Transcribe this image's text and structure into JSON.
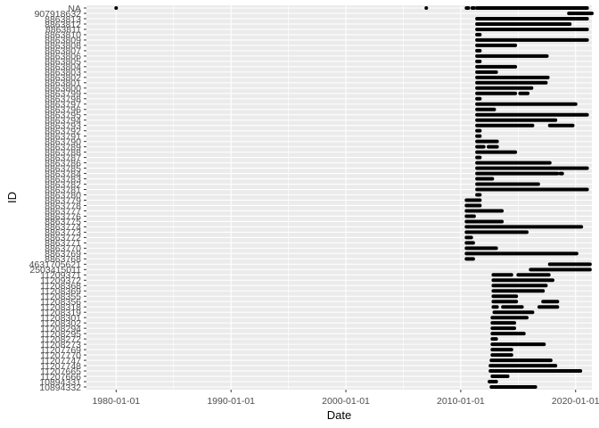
{
  "chart_data": {
    "type": "scatter",
    "title": "",
    "xlabel": "Date",
    "ylabel": "ID",
    "x_axis_type": "date",
    "xlim": [
      "1977-06-01",
      "2021-06-01"
    ],
    "x_ticks": [
      "1980-01-01",
      "1990-01-01",
      "2000-01-01",
      "2010-01-01",
      "2020-01-01"
    ],
    "y_categories": [
      "10894332",
      "10894331",
      "11207666",
      "11207665",
      "11207748",
      "11207747",
      "11207770",
      "11207769",
      "11208273",
      "11208272",
      "11208295",
      "11208294",
      "11208302",
      "11208301",
      "11208319",
      "11208318",
      "11208356",
      "11208355",
      "11208369",
      "11208368",
      "11209372",
      "11209371",
      "2503415011",
      "4631705621",
      "8863768",
      "8863769",
      "8863770",
      "8863771",
      "8863772",
      "8863773",
      "8863774",
      "8863775",
      "8863776",
      "8863777",
      "8863778",
      "8863779",
      "8863780",
      "8863781",
      "8863782",
      "8863783",
      "8863784",
      "8863785",
      "8863786",
      "8863787",
      "8863788",
      "8863789",
      "8863790",
      "8863791",
      "8863792",
      "8863793",
      "8863794",
      "8863795",
      "8863796",
      "8863797",
      "8863798",
      "8863799",
      "8863800",
      "8863801",
      "8863802",
      "8863803",
      "8863804",
      "8863805",
      "8863806",
      "8863807",
      "8863808",
      "8863809",
      "8863810",
      "8863811",
      "8863812",
      "8863813",
      "907918632",
      "NA"
    ],
    "y_tick_labels": [
      "10894332",
      "10894331",
      "11207666",
      "11207665",
      "11207748",
      "11207747",
      "11207770",
      "11207769",
      "11208273",
      "11208272",
      "11208295",
      "11208294",
      "11208302",
      "11208301",
      "11208319",
      "11208318",
      "11208356",
      "11208355",
      "11208369",
      "11208368",
      "11209372",
      "11209371",
      "2503415011",
      "4631705621",
      "8863768",
      "8863769",
      "8863770",
      "8863771",
      "8863772",
      "8863773",
      "8863774",
      "8863775",
      "8863776",
      "8863777",
      "8863778",
      "8863779",
      "8863780",
      "8863781",
      "8863782",
      "8863783",
      "8863784",
      "8863785",
      "8863786",
      "8863787",
      "8863788",
      "8863789",
      "8863790",
      "8863791",
      "8863792",
      "8863793",
      "8863794",
      "8863795",
      "8863796",
      "8863797",
      "8863798",
      "8863799",
      "8863800",
      "8863801",
      "8863802",
      "8863803",
      "8863804",
      "8863805",
      "8863806",
      "8863807",
      "8863808",
      "8863809",
      "8863810",
      "8863811",
      "8863812",
      "8863813",
      "907918632",
      "NA"
    ],
    "grid": true,
    "legend": "none",
    "point_color": "#000000",
    "panel_background": "#ebebeb",
    "grid_color": "#ffffff",
    "segments": [
      {
        "id": "10894332",
        "ranges": [
          [
            "2012-09-01",
            "2016-07-01"
          ]
        ]
      },
      {
        "id": "10894331",
        "ranges": [
          [
            "2012-07-01",
            "2013-02-01"
          ]
        ]
      },
      {
        "id": "11207666",
        "ranges": [
          [
            "2012-10-01",
            "2014-02-01"
          ]
        ]
      },
      {
        "id": "11207665",
        "ranges": [
          [
            "2012-08-01",
            "2020-06-01"
          ]
        ]
      },
      {
        "id": "11207748",
        "ranges": [
          [
            "2012-08-01",
            "2018-04-01"
          ]
        ]
      },
      {
        "id": "11207747",
        "ranges": [
          [
            "2012-09-01",
            "2017-11-01"
          ]
        ]
      },
      {
        "id": "11207770",
        "ranges": [
          [
            "2012-10-01",
            "2014-06-01"
          ]
        ]
      },
      {
        "id": "11207769",
        "ranges": [
          [
            "2012-10-01",
            "2014-06-01"
          ]
        ]
      },
      {
        "id": "11208273",
        "ranges": [
          [
            "2012-10-01",
            "2017-04-01"
          ]
        ]
      },
      {
        "id": "11208272",
        "ranges": [
          [
            "2012-10-01",
            "2013-02-01"
          ]
        ]
      },
      {
        "id": "11208295",
        "ranges": [
          [
            "2012-10-01",
            "2015-07-01"
          ]
        ]
      },
      {
        "id": "11208294",
        "ranges": [
          [
            "2012-10-01",
            "2014-09-01"
          ]
        ]
      },
      {
        "id": "11208302",
        "ranges": [
          [
            "2012-10-01",
            "2014-09-01"
          ]
        ]
      },
      {
        "id": "11208301",
        "ranges": [
          [
            "2012-10-01",
            "2015-10-01"
          ]
        ]
      },
      {
        "id": "11208319",
        "ranges": [
          [
            "2012-12-01",
            "2016-04-01"
          ]
        ]
      },
      {
        "id": "11208318",
        "ranges": [
          [
            "2012-11-01",
            "2013-03-01"
          ],
          [
            "2013-09-01",
            "2015-05-01"
          ],
          [
            "2016-11-01",
            "2018-06-01"
          ]
        ]
      },
      {
        "id": "11208356",
        "ranges": [
          [
            "2012-11-01",
            "2014-11-01"
          ],
          [
            "2017-03-01",
            "2018-06-01"
          ]
        ]
      },
      {
        "id": "11208355",
        "ranges": [
          [
            "2012-11-01",
            "2014-11-01"
          ]
        ]
      },
      {
        "id": "11208369",
        "ranges": [
          [
            "2012-11-01",
            "2017-03-01"
          ]
        ]
      },
      {
        "id": "11208368",
        "ranges": [
          [
            "2012-11-01",
            "2017-06-01"
          ]
        ]
      },
      {
        "id": "11209372",
        "ranges": [
          [
            "2012-11-01",
            "2018-01-01"
          ]
        ]
      },
      {
        "id": "11209371",
        "ranges": [
          [
            "2012-11-01",
            "2014-06-01"
          ],
          [
            "2015-01-01",
            "2017-09-01"
          ]
        ]
      },
      {
        "id": "2503415011",
        "ranges": [
          [
            "2016-02-01",
            "2021-04-01"
          ]
        ]
      },
      {
        "id": "4631705621",
        "ranges": [
          [
            "2017-10-01",
            "2021-04-01"
          ]
        ]
      },
      {
        "id": "8863768",
        "ranges": [
          [
            "2010-07-01",
            "2011-02-01"
          ]
        ]
      },
      {
        "id": "8863769",
        "ranges": [
          [
            "2010-07-01",
            "2020-02-01"
          ]
        ]
      },
      {
        "id": "8863770",
        "ranges": [
          [
            "2010-07-01",
            "2013-02-01"
          ]
        ]
      },
      {
        "id": "8863771",
        "ranges": [
          [
            "2010-07-01",
            "2011-02-01"
          ]
        ]
      },
      {
        "id": "8863772",
        "ranges": [
          [
            "2010-07-01",
            "2010-12-01"
          ]
        ]
      },
      {
        "id": "8863773",
        "ranges": [
          [
            "2010-07-01",
            "2015-10-01"
          ]
        ]
      },
      {
        "id": "8863774",
        "ranges": [
          [
            "2010-07-01",
            "2020-07-01"
          ]
        ]
      },
      {
        "id": "8863775",
        "ranges": [
          [
            "2010-07-01",
            "2013-08-01"
          ]
        ]
      },
      {
        "id": "8863776",
        "ranges": [
          [
            "2010-07-01",
            "2011-03-01"
          ]
        ]
      },
      {
        "id": "8863777",
        "ranges": [
          [
            "2010-07-01",
            "2013-08-01"
          ]
        ]
      },
      {
        "id": "8863778",
        "ranges": [
          [
            "2010-07-01",
            "2011-09-01"
          ]
        ]
      },
      {
        "id": "8863779",
        "ranges": [
          [
            "2010-07-01",
            "2011-09-01"
          ]
        ]
      },
      {
        "id": "8863780",
        "ranges": [
          [
            "2011-06-01",
            "2011-09-01"
          ]
        ]
      },
      {
        "id": "8863781",
        "ranges": [
          [
            "2011-06-01",
            "2021-01-01"
          ]
        ]
      },
      {
        "id": "8863782",
        "ranges": [
          [
            "2011-06-01",
            "2016-10-01"
          ]
        ]
      },
      {
        "id": "8863783",
        "ranges": [
          [
            "2011-06-01",
            "2012-10-01"
          ]
        ]
      },
      {
        "id": "8863784",
        "ranges": [
          [
            "2011-06-01",
            "2018-06-01"
          ],
          [
            "2018-09-01",
            "2018-11-01"
          ]
        ]
      },
      {
        "id": "8863785",
        "ranges": [
          [
            "2011-06-01",
            "2021-01-01"
          ]
        ]
      },
      {
        "id": "8863786",
        "ranges": [
          [
            "2011-06-01",
            "2017-10-01"
          ]
        ]
      },
      {
        "id": "8863787",
        "ranges": [
          [
            "2011-06-01",
            "2011-09-01"
          ]
        ]
      },
      {
        "id": "8863788",
        "ranges": [
          [
            "2011-06-01",
            "2014-10-01"
          ]
        ]
      },
      {
        "id": "8863789",
        "ranges": [
          [
            "2011-06-01",
            "2012-01-01"
          ],
          [
            "2012-06-01",
            "2013-03-01"
          ]
        ]
      },
      {
        "id": "8863790",
        "ranges": [
          [
            "2011-06-01",
            "2013-03-01"
          ]
        ]
      },
      {
        "id": "8863791",
        "ranges": [
          [
            "2011-06-01",
            "2011-09-01"
          ]
        ]
      },
      {
        "id": "8863792",
        "ranges": [
          [
            "2011-06-01",
            "2011-09-01"
          ]
        ]
      },
      {
        "id": "8863793",
        "ranges": [
          [
            "2011-06-01",
            "2016-04-01"
          ],
          [
            "2017-10-01",
            "2019-10-01"
          ]
        ]
      },
      {
        "id": "8863794",
        "ranges": [
          [
            "2011-06-01",
            "2018-04-01"
          ]
        ]
      },
      {
        "id": "8863795",
        "ranges": [
          [
            "2011-06-01",
            "2021-01-01"
          ]
        ]
      },
      {
        "id": "8863796",
        "ranges": [
          [
            "2011-06-01",
            "2012-12-01"
          ]
        ]
      },
      {
        "id": "8863797",
        "ranges": [
          [
            "2011-06-01",
            "2020-01-01"
          ]
        ]
      },
      {
        "id": "8863798",
        "ranges": [
          [
            "2011-06-01",
            "2011-09-01"
          ]
        ]
      },
      {
        "id": "8863799",
        "ranges": [
          [
            "2011-06-01",
            "2014-10-01"
          ],
          [
            "2015-03-01",
            "2015-11-01"
          ]
        ]
      },
      {
        "id": "8863800",
        "ranges": [
          [
            "2011-06-01",
            "2016-03-01"
          ]
        ]
      },
      {
        "id": "8863801",
        "ranges": [
          [
            "2011-06-01",
            "2017-06-01"
          ]
        ]
      },
      {
        "id": "8863802",
        "ranges": [
          [
            "2011-06-01",
            "2017-08-01"
          ]
        ]
      },
      {
        "id": "8863803",
        "ranges": [
          [
            "2011-06-01",
            "2013-02-01"
          ]
        ]
      },
      {
        "id": "8863804",
        "ranges": [
          [
            "2011-06-01",
            "2014-10-01"
          ]
        ]
      },
      {
        "id": "8863805",
        "ranges": [
          [
            "2011-06-01",
            "2011-09-01"
          ]
        ]
      },
      {
        "id": "8863806",
        "ranges": [
          [
            "2011-06-01",
            "2017-07-01"
          ]
        ]
      },
      {
        "id": "8863807",
        "ranges": [
          [
            "2011-06-01",
            "2011-09-01"
          ]
        ]
      },
      {
        "id": "8863808",
        "ranges": [
          [
            "2011-06-01",
            "2014-10-01"
          ]
        ]
      },
      {
        "id": "8863809",
        "ranges": [
          [
            "2011-06-01",
            "2021-01-01"
          ]
        ]
      },
      {
        "id": "8863810",
        "ranges": [
          [
            "2011-06-01",
            "2011-09-01"
          ]
        ]
      },
      {
        "id": "8863811",
        "ranges": [
          [
            "2011-06-01",
            "2021-01-01"
          ]
        ]
      },
      {
        "id": "8863812",
        "ranges": [
          [
            "2011-06-01",
            "2019-07-01"
          ]
        ]
      },
      {
        "id": "8863813",
        "ranges": [
          [
            "2011-06-01",
            "2021-01-01"
          ]
        ]
      },
      {
        "id": "907918632",
        "ranges": [
          [
            "2019-06-01",
            "2021-06-01"
          ]
        ]
      },
      {
        "id": "NA",
        "ranges": [
          [
            "1980-01-01",
            "1980-01-01"
          ],
          [
            "2007-01-01",
            "2007-01-01"
          ],
          [
            "2010-07-01",
            "2010-09-01"
          ],
          [
            "2011-01-01",
            "2011-03-01"
          ],
          [
            "2011-06-01",
            "2021-01-01"
          ]
        ]
      }
    ]
  }
}
